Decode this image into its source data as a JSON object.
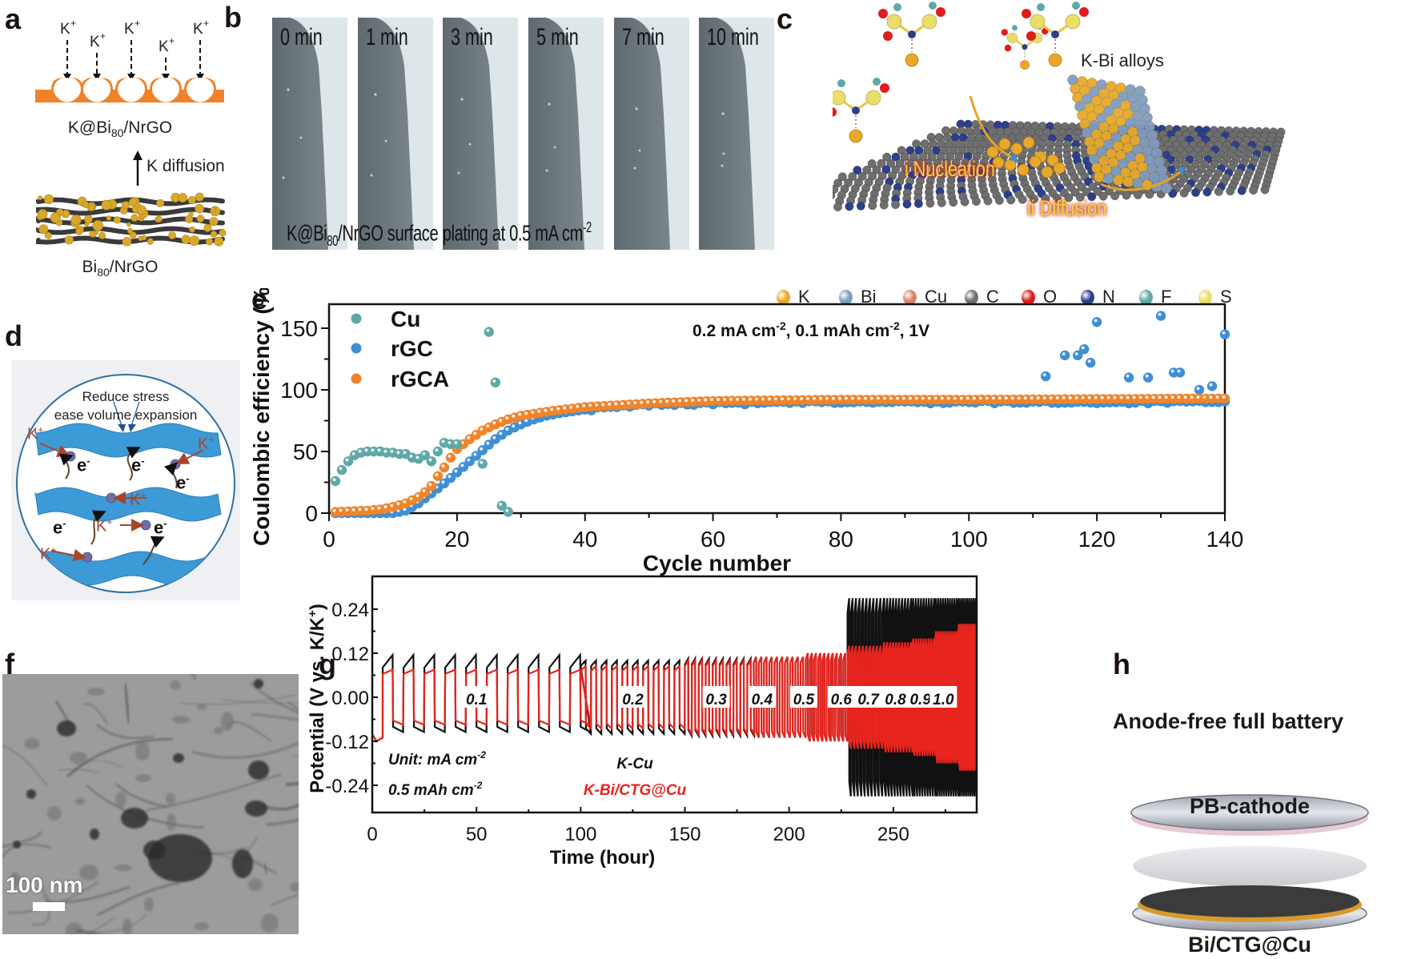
{
  "figure": {
    "panel_labels": [
      "a",
      "b",
      "c",
      "d",
      "e",
      "f",
      "g",
      "h"
    ]
  },
  "panel_a": {
    "ion_label": "K",
    "ion_charge": "+",
    "ion_count": 5,
    "top_label_main": "K@Bi",
    "top_label_sub": "80",
    "top_label_tail": "/NrGO",
    "arrow_label": "K diffusion",
    "bottom_label_main": "Bi",
    "bottom_label_sub": "80",
    "bottom_label_tail": "/NrGO",
    "colors": {
      "substrate": "#F0822A",
      "graphene": "#3a3a3a",
      "particle": "#D7A82B"
    }
  },
  "panel_b": {
    "frames": [
      "0 min",
      "1 min",
      "3 min",
      "5 min",
      "7 min",
      "10 min"
    ],
    "caption_main": "K@Bi",
    "caption_sub": "80",
    "caption_tail": "/NrGO surface plating at 0.5 mA cm",
    "caption_sup": "-2"
  },
  "panel_c": {
    "alloy_label": "K-Bi alloys",
    "step1": "i Nucleation",
    "step2": "ii Diffusion",
    "legend": [
      {
        "element": "K",
        "color": "#E8A92A"
      },
      {
        "element": "Bi",
        "color": "#7F9CC0"
      },
      {
        "element": "Cu",
        "color": "#D9826E"
      },
      {
        "element": "C",
        "color": "#6E6E6E"
      },
      {
        "element": "O",
        "color": "#E01B1B"
      },
      {
        "element": "N",
        "color": "#2C3F8C"
      },
      {
        "element": "F",
        "color": "#5FA7A8"
      },
      {
        "element": "S",
        "color": "#E9DE6A"
      }
    ]
  },
  "panel_d": {
    "title_line1": "Reduce stress",
    "title_line2": "ease volume expansion",
    "ion_label": "K",
    "ion_charge": "+",
    "electron_label": "e",
    "electron_charge": "-",
    "colors": {
      "sheet": "#3C9AD6",
      "ion": "#A6452B",
      "circle": "#2F6FA0"
    }
  },
  "chart_data": [
    {
      "id": "panel_e",
      "type": "scatter",
      "title": "",
      "annotation": "0.2 mA cm-2,  0.1 mAh cm-2, 1V",
      "annotation_parts": [
        "0.2 mA cm",
        "-2",
        ",  0.1 mAh cm",
        "-2",
        ", 1V"
      ],
      "xlabel": "Cycle number",
      "ylabel": "Coulombic efficiency (%)",
      "xlim": [
        0,
        140
      ],
      "ylim": [
        0,
        170
      ],
      "xticks": [
        0,
        20,
        40,
        60,
        80,
        100,
        120,
        140
      ],
      "yticks": [
        0,
        50,
        100,
        150
      ],
      "legend_position": "top-left",
      "grid": false,
      "series": [
        {
          "name": "Cu",
          "color": "#5FA8A6",
          "x": [
            1,
            2,
            3,
            4,
            5,
            6,
            7,
            8,
            9,
            10,
            11,
            12,
            13,
            14,
            15,
            16,
            17,
            18,
            19,
            20,
            24,
            25,
            26,
            27,
            28
          ],
          "y": [
            26,
            35,
            42,
            47,
            49,
            50,
            50,
            50,
            49,
            49,
            48,
            48,
            45,
            44,
            47,
            42,
            50,
            57,
            56,
            56,
            40,
            147,
            106,
            6,
            1
          ]
        },
        {
          "name": "rGC",
          "color": "#3E8FD4",
          "x_start": 1,
          "x_end": 140,
          "trend": [
            [
              1,
              0
            ],
            [
              10,
              0
            ],
            [
              12,
              2
            ],
            [
              14,
              8
            ],
            [
              16,
              16
            ],
            [
              18,
              24
            ],
            [
              20,
              33
            ],
            [
              22,
              42
            ],
            [
              24,
              51
            ],
            [
              26,
              60
            ],
            [
              28,
              67
            ],
            [
              30,
              72
            ],
            [
              32,
              76
            ],
            [
              34,
              79
            ],
            [
              36,
              81
            ],
            [
              40,
              84
            ],
            [
              45,
              86
            ],
            [
              50,
              88
            ],
            [
              60,
              89
            ],
            [
              80,
              90
            ],
            [
              100,
              90
            ],
            [
              112,
              90
            ],
            [
              140,
              90
            ]
          ],
          "outliers": [
            [
              112,
              111
            ],
            [
              115,
              128
            ],
            [
              117,
              128
            ],
            [
              118,
              133
            ],
            [
              119,
              122
            ],
            [
              120,
              155
            ],
            [
              125,
              110
            ],
            [
              128,
              110
            ],
            [
              130,
              160
            ],
            [
              132,
              114
            ],
            [
              133,
              114
            ],
            [
              136,
              100
            ],
            [
              138,
              103
            ],
            [
              140,
              145
            ]
          ]
        },
        {
          "name": "rGCA",
          "color": "#F0842A",
          "x_start": 1,
          "x_end": 140,
          "trend": [
            [
              1,
              1
            ],
            [
              6,
              2
            ],
            [
              8,
              3
            ],
            [
              10,
              5
            ],
            [
              12,
              8
            ],
            [
              14,
              13
            ],
            [
              15,
              17
            ],
            [
              16,
              22
            ],
            [
              17,
              30
            ],
            [
              18,
              37
            ],
            [
              19,
              45
            ],
            [
              20,
              52
            ],
            [
              22,
              60
            ],
            [
              24,
              67
            ],
            [
              26,
              72
            ],
            [
              28,
              76
            ],
            [
              30,
              79
            ],
            [
              35,
              83
            ],
            [
              40,
              86
            ],
            [
              50,
              89
            ],
            [
              60,
              91
            ],
            [
              80,
              92
            ],
            [
              100,
              92
            ],
            [
              140,
              93
            ]
          ]
        }
      ]
    },
    {
      "id": "panel_g",
      "type": "line",
      "xlabel": "Time (hour)",
      "ylabel": "Potential (V vs. K/K+)",
      "xlim": [
        0,
        290
      ],
      "ylim": [
        -0.3,
        0.3
      ],
      "xticks": [
        0,
        50,
        100,
        150,
        200,
        250
      ],
      "yticks": [
        -0.24,
        -0.12,
        0.0,
        0.12,
        0.24
      ],
      "ytick_labels": [
        "-0.24",
        "-0.12",
        "0.00",
        "0.12",
        "0.24"
      ],
      "note_line1": "Unit: mA cm",
      "note_line1_sup": "-2",
      "note_line2": "0.5 mAh cm",
      "note_line2_sup": "-2",
      "legend": [
        {
          "name": "K-Cu",
          "color": "#111111"
        },
        {
          "name": "K-Bi/CTG@Cu",
          "color": "#E8241E"
        }
      ],
      "rate_labels": [
        {
          "rate": "0.1",
          "t": 50
        },
        {
          "rate": "0.2",
          "t": 125
        },
        {
          "rate": "0.3",
          "t": 165
        },
        {
          "rate": "0.4",
          "t": 187
        },
        {
          "rate": "0.5",
          "t": 207
        },
        {
          "rate": "0.6",
          "t": 225
        },
        {
          "rate": "0.7",
          "t": 238
        },
        {
          "rate": "0.8",
          "t": 251
        },
        {
          "rate": "0.9",
          "t": 263
        },
        {
          "rate": "1.0",
          "t": 274
        }
      ],
      "segments": [
        {
          "rate": "0.1",
          "t_start": 5,
          "t_end": 100,
          "period": 10,
          "red_amp": 0.075,
          "black_amp": 0.095
        },
        {
          "rate": "0.2",
          "t_start": 100,
          "t_end": 150,
          "period": 5,
          "red_amp": 0.085,
          "black_amp": 0.1
        },
        {
          "rate": "0.3",
          "t_start": 150,
          "t_end": 183,
          "period": 3.33,
          "red_amp": 0.1,
          "black_amp": 0.105
        },
        {
          "rate": "0.4",
          "t_start": 183,
          "t_end": 208,
          "period": 2.5,
          "red_amp": 0.11,
          "black_amp": 0.11
        },
        {
          "rate": "0.5",
          "t_start": 208,
          "t_end": 228,
          "period": 2,
          "red_amp": 0.12,
          "black_amp": 0.12
        },
        {
          "rate": "0.6",
          "t_start": 228,
          "t_end": 245,
          "period": 1.67,
          "red_amp": 0.14,
          "black_amp": 0.27
        },
        {
          "rate": "0.7",
          "t_start": 245,
          "t_end": 259,
          "period": 1.43,
          "red_amp": 0.15,
          "black_amp": 0.27
        },
        {
          "rate": "0.8",
          "t_start": 259,
          "t_end": 270,
          "period": 1.25,
          "red_amp": 0.16,
          "black_amp": 0.27
        },
        {
          "rate": "0.9",
          "t_start": 270,
          "t_end": 281,
          "period": 1.11,
          "red_amp": 0.18,
          "black_amp": 0.27
        },
        {
          "rate": "1.0",
          "t_start": 281,
          "t_end": 290,
          "period": 1,
          "red_amp": 0.2,
          "black_amp": 0.27
        }
      ]
    }
  ],
  "panel_f": {
    "scale_bar_label": "100 nm"
  },
  "panel_h": {
    "title": "Anode-free full battery",
    "top_layer_label": "PB-cathode",
    "bottom_layer_label": "Bi/CTG@Cu"
  }
}
